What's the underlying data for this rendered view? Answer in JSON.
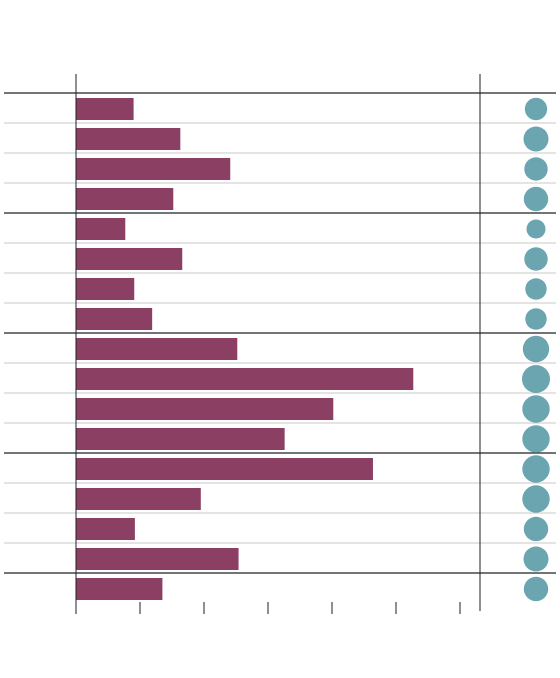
{
  "chart_data": {
    "type": "bar",
    "orientation": "horizontal",
    "title": "",
    "xlabel": "",
    "ylabel": "",
    "xlim": [
      0,
      6.3
    ],
    "grid": true,
    "legend": "none",
    "groups": [
      4,
      4,
      4,
      4,
      1
    ],
    "categories": [
      "",
      "",
      "",
      "",
      "",
      "",
      "",
      "",
      "",
      "",
      "",
      "",
      "",
      "",
      "",
      "",
      ""
    ],
    "values": [
      0.9,
      1.63,
      2.41,
      1.52,
      0.77,
      1.66,
      0.91,
      1.19,
      2.52,
      5.27,
      4.02,
      3.26,
      4.64,
      1.95,
      0.92,
      2.54,
      1.35
    ],
    "circle_values": [
      0.72,
      0.85,
      0.77,
      0.82,
      0.55,
      0.77,
      0.67,
      0.67,
      0.92,
      1.0,
      0.97,
      0.97,
      0.97,
      0.97,
      0.82,
      0.85,
      0.82
    ],
    "colors": {
      "bar": "#8b3f62",
      "circle": "#6aa5b0",
      "grid": "#c8c8c8",
      "axis": "#222222"
    }
  }
}
